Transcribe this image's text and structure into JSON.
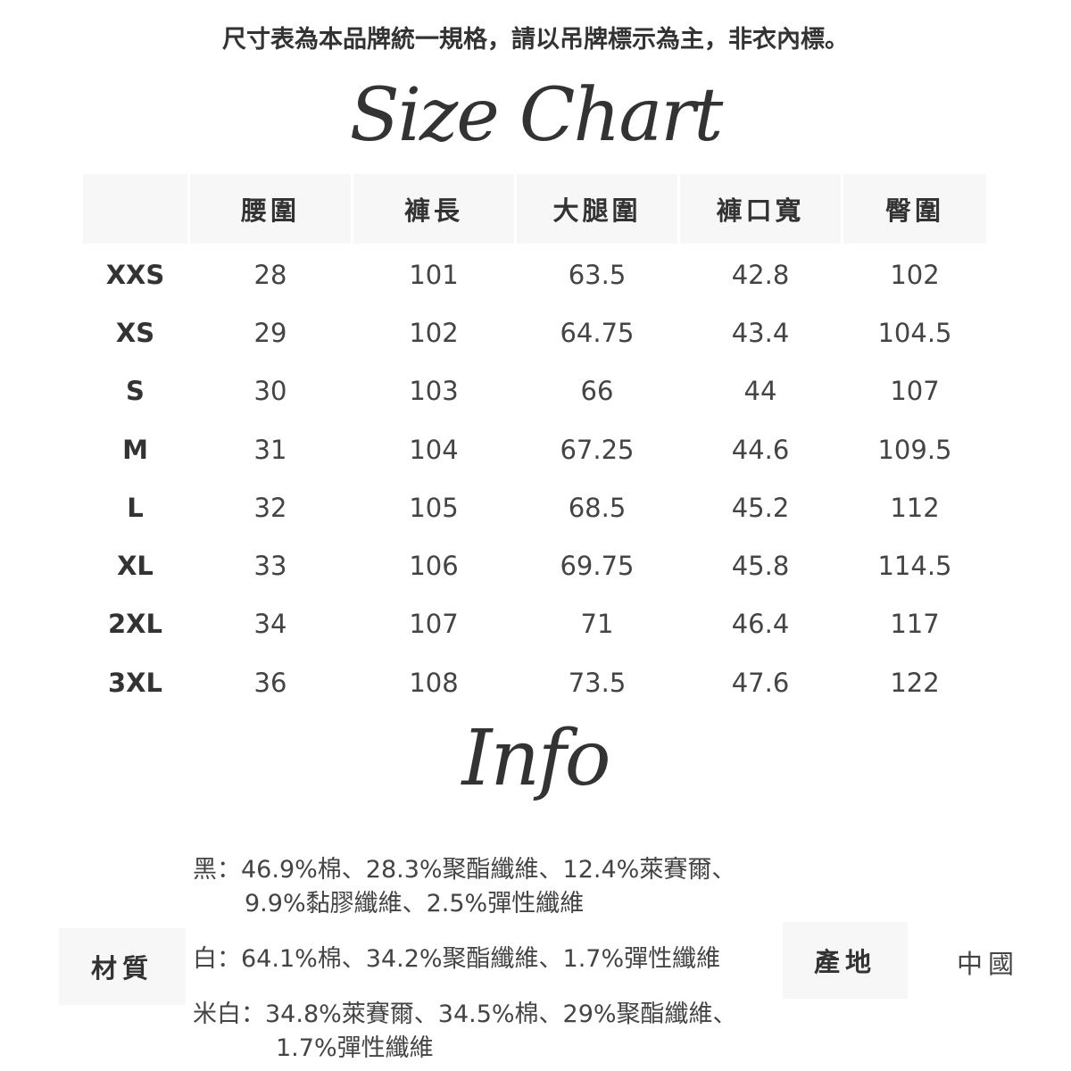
{
  "notice": "尺寸表為本品牌統一規格，請以吊牌標示為主，非衣內標。",
  "size_chart_title": "Size Chart",
  "table": {
    "headers": [
      "",
      "腰圍",
      "褲長",
      "大腿圍",
      "褲口寬",
      "臀圍"
    ],
    "rows": [
      [
        "XXS",
        "28",
        "101",
        "63.5",
        "42.8",
        "102"
      ],
      [
        "XS",
        "29",
        "102",
        "64.75",
        "43.4",
        "104.5"
      ],
      [
        "S",
        "30",
        "103",
        "66",
        "44",
        "107"
      ],
      [
        "M",
        "31",
        "104",
        "67.25",
        "44.6",
        "109.5"
      ],
      [
        "L",
        "32",
        "105",
        "68.5",
        "45.2",
        "112"
      ],
      [
        "XL",
        "33",
        "106",
        "69.75",
        "45.8",
        "114.5"
      ],
      [
        "2XL",
        "34",
        "107",
        "71",
        "46.4",
        "117"
      ],
      [
        "3XL",
        "36",
        "108",
        "73.5",
        "47.6",
        "122"
      ]
    ]
  },
  "info_title": "Info",
  "info": {
    "material_label": "材質",
    "material_lines": [
      "黑：46.9%棉、28.3%聚酯纖維、12.4%萊賽爾、",
      "9.9%黏膠纖維、2.5%彈性纖維",
      "白：64.1%棉、34.2%聚酯纖維、1.7%彈性纖維",
      "米白：34.8%萊賽爾、34.5%棉、29%聚酯纖維、",
      "1.7%彈性纖維"
    ],
    "origin_label": "產地",
    "origin_value": "中國"
  }
}
